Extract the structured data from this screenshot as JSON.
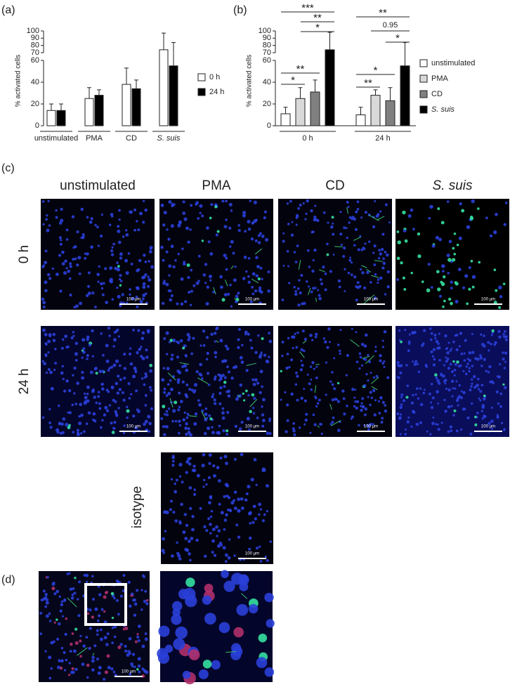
{
  "panels": [
    "(a)",
    "(b)",
    "(c)",
    "(d)"
  ],
  "chart_data": [
    {
      "type": "bar",
      "ylabel": "% activated cells",
      "categories": [
        "unstimulated",
        "PMA",
        "CD",
        "S. suis"
      ],
      "series": [
        {
          "name": "0 h",
          "color": "#ffffff",
          "values": [
            14,
            25,
            38,
            74
          ],
          "errors": [
            6,
            10,
            15,
            23
          ]
        },
        {
          "name": "24 h",
          "color": "#000000",
          "values": [
            14,
            28,
            34,
            55
          ],
          "errors": [
            6,
            5,
            8,
            29
          ]
        }
      ],
      "ylim": [
        0,
        100
      ],
      "ybreak": [
        60,
        70
      ],
      "yticks": [
        0,
        20,
        40,
        60,
        70,
        80,
        90,
        100
      ],
      "legend": "right"
    },
    {
      "type": "bar",
      "ylabel": "% activated cells",
      "categories": [
        "0 h",
        "24 h"
      ],
      "series": [
        {
          "name": "unstimulated",
          "color": "#ffffff",
          "values": [
            11,
            10
          ],
          "errors": [
            6,
            7
          ]
        },
        {
          "name": "PMA",
          "color": "#d9d9d9",
          "values": [
            25,
            28
          ],
          "errors": [
            10,
            5
          ]
        },
        {
          "name": "CD",
          "color": "#808080",
          "values": [
            31,
            23
          ],
          "errors": [
            11,
            12
          ]
        },
        {
          "name": "S. suis",
          "color": "#000000",
          "values": [
            74,
            55
          ],
          "errors": [
            24,
            29
          ]
        }
      ],
      "ylim": [
        0,
        100
      ],
      "ybreak": [
        60,
        70
      ],
      "yticks": [
        0,
        20,
        40,
        60,
        70,
        80,
        90,
        100
      ],
      "legend": "right",
      "annotations": [
        "***",
        "**",
        "*",
        "**",
        "*",
        "**",
        "0.95",
        "*",
        "*",
        "**"
      ]
    }
  ],
  "micrographs": {
    "columns": [
      "unstimulated",
      "PMA",
      "CD",
      "S. suis"
    ],
    "rows": [
      "0 h",
      "24 h"
    ],
    "isotype": "isotype",
    "scale_bar": "100 µm"
  }
}
